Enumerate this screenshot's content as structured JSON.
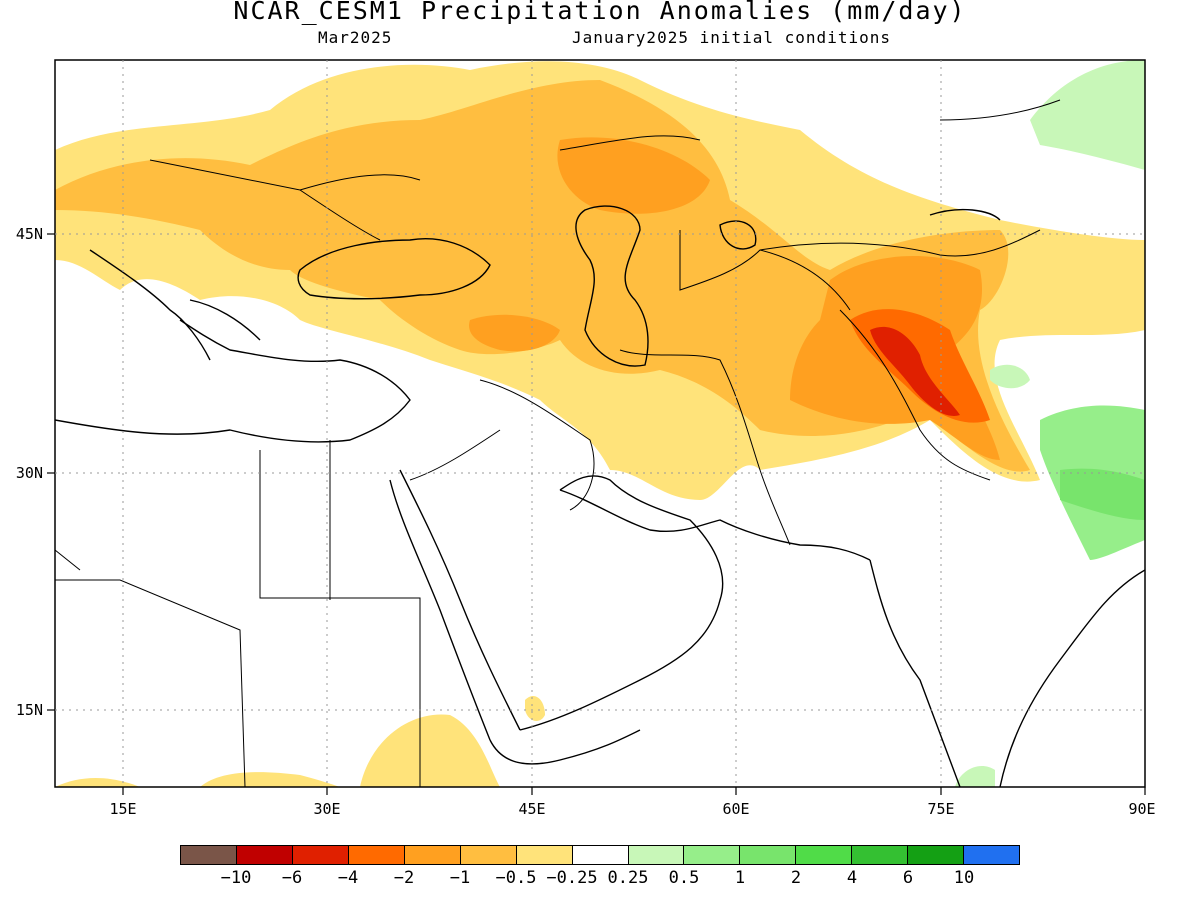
{
  "title": "NCAR_CESM1 Precipitation Anomalies (mm/day)",
  "subtitle_left": "Mar2025",
  "subtitle_right": "January2025 initial conditions",
  "map": {
    "lon_range": [
      10,
      90
    ],
    "lat_range": [
      10,
      57
    ],
    "lon_ticks": [
      "15E",
      "30E",
      "45E",
      "60E",
      "75E",
      "90E"
    ],
    "lat_ticks": [
      "45N",
      "30N",
      "15N"
    ],
    "grid": "dotted"
  },
  "colorbar": {
    "colors": [
      "#7a5548",
      "#c00000",
      "#e02000",
      "#ff6a00",
      "#ffa020",
      "#ffbe40",
      "#ffe37a",
      "#ffffff",
      "#c8f7b8",
      "#96ee8a",
      "#78e46c",
      "#50dc48",
      "#34c032",
      "#14a014",
      "#2070f0"
    ],
    "labels": [
      "-10",
      "-6",
      "-4",
      "-2",
      "-1",
      "-0.5",
      "-0.25",
      "0.25",
      "0.5",
      "1",
      "2",
      "4",
      "6",
      "10"
    ]
  },
  "anomaly_colors": {
    "light_dry": "#ffe37a",
    "dry": "#ffbe40",
    "mod_dry": "#ffa020",
    "strong_dry": "#ff6a00",
    "very_dry": "#e02000",
    "light_wet": "#c8f7b8",
    "wet": "#96ee8a",
    "mod_wet": "#78e46c"
  }
}
